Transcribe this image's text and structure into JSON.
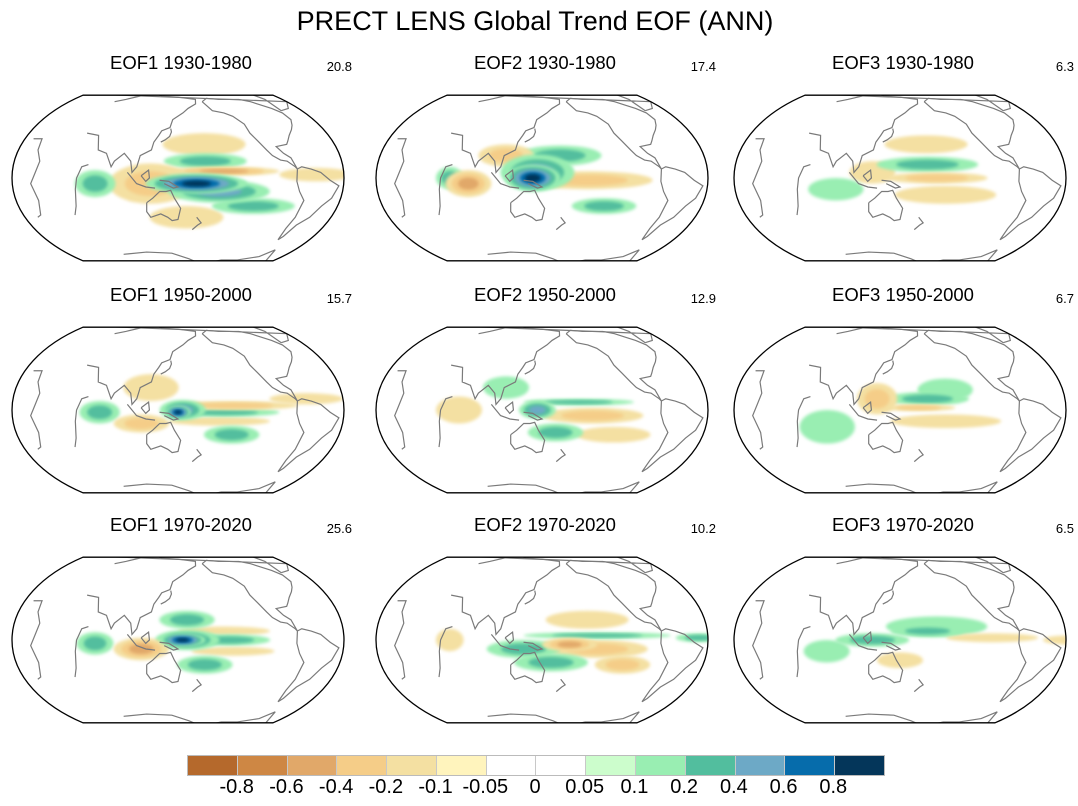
{
  "chart_data": {
    "type": "heatmap",
    "title": "PRECT LENS Global Trend EOF (ANN)",
    "projection": "Robinson, Pacific-centered",
    "layout": "3x3 grid (rows: periods; columns: EOF mode)",
    "panels": [
      {
        "title": "EOF1 1930-1980",
        "mode": "EOF1",
        "period": "1930-1980",
        "pct_variance": "20.8",
        "pattern": [
          {
            "lon": 170,
            "lat": -5,
            "rx": 55,
            "ry": 9,
            "value": 0.8
          },
          {
            "lon": 195,
            "lat": -12,
            "rx": 55,
            "ry": 10,
            "value": 0.4
          },
          {
            "lon": 235,
            "lat": -25,
            "rx": 45,
            "ry": 7,
            "value": 0.2
          },
          {
            "lon": 180,
            "lat": 15,
            "rx": 45,
            "ry": 7,
            "value": 0.2
          },
          {
            "lon": 200,
            "lat": 6,
            "rx": 60,
            "ry": 4,
            "value": -0.4
          },
          {
            "lon": 120,
            "lat": -5,
            "rx": 45,
            "ry": 18,
            "value": -0.2
          },
          {
            "lon": 60,
            "lat": -5,
            "rx": 22,
            "ry": 12,
            "value": 0.2
          },
          {
            "lon": 300,
            "lat": 3,
            "rx": 40,
            "ry": 6,
            "value": -0.1
          },
          {
            "lon": 180,
            "lat": 30,
            "rx": 45,
            "ry": 10,
            "value": -0.1
          },
          {
            "lon": 160,
            "lat": -35,
            "rx": 40,
            "ry": 10,
            "value": -0.1
          }
        ]
      },
      {
        "title": "EOF2 1930-1980",
        "mode": "EOF2",
        "period": "1930-1980",
        "pct_variance": "17.4",
        "pattern": [
          {
            "lon": 140,
            "lat": 0,
            "rx": 30,
            "ry": 12,
            "value": 0.8
          },
          {
            "lon": 145,
            "lat": 5,
            "rx": 40,
            "ry": 16,
            "value": 0.4
          },
          {
            "lon": 200,
            "lat": -2,
            "rx": 70,
            "ry": 8,
            "value": -0.2
          },
          {
            "lon": 220,
            "lat": -25,
            "rx": 35,
            "ry": 7,
            "value": 0.2
          },
          {
            "lon": 170,
            "lat": 20,
            "rx": 45,
            "ry": 9,
            "value": 0.2
          },
          {
            "lon": 70,
            "lat": -5,
            "rx": 25,
            "ry": 12,
            "value": -0.4
          },
          {
            "lon": 50,
            "lat": 0,
            "rx": 15,
            "ry": 10,
            "value": 0.2
          },
          {
            "lon": 110,
            "lat": 20,
            "rx": 30,
            "ry": 10,
            "value": -0.2
          }
        ]
      },
      {
        "title": "EOF3 1930-1980",
        "mode": "EOF3",
        "period": "1930-1980",
        "pct_variance": "6.3",
        "pattern": [
          {
            "lon": 180,
            "lat": 12,
            "rx": 55,
            "ry": 7,
            "value": 0.2
          },
          {
            "lon": 190,
            "lat": 0,
            "rx": 55,
            "ry": 5,
            "value": -0.2
          },
          {
            "lon": 200,
            "lat": -15,
            "rx": 55,
            "ry": 8,
            "value": -0.1
          },
          {
            "lon": 180,
            "lat": 30,
            "rx": 45,
            "ry": 8,
            "value": -0.1
          },
          {
            "lon": 120,
            "lat": 5,
            "rx": 25,
            "ry": 10,
            "value": -0.1
          },
          {
            "lon": 80,
            "lat": -10,
            "rx": 30,
            "ry": 10,
            "value": 0.1
          }
        ]
      },
      {
        "title": "EOF1 1950-2000",
        "mode": "EOF1",
        "period": "1950-2000",
        "pct_variance": "15.7",
        "pattern": [
          {
            "lon": 150,
            "lat": -2,
            "rx": 14,
            "ry": 6,
            "value": 0.8
          },
          {
            "lon": 155,
            "lat": 0,
            "rx": 25,
            "ry": 9,
            "value": 0.4
          },
          {
            "lon": 200,
            "lat": -2,
            "rx": 60,
            "ry": 4,
            "value": 0.2
          },
          {
            "lon": 210,
            "lat": 4,
            "rx": 70,
            "ry": 4,
            "value": -0.2
          },
          {
            "lon": 195,
            "lat": -10,
            "rx": 55,
            "ry": 4,
            "value": -0.1
          },
          {
            "lon": 210,
            "lat": -22,
            "rx": 30,
            "ry": 8,
            "value": 0.2
          },
          {
            "lon": 65,
            "lat": -2,
            "rx": 22,
            "ry": 10,
            "value": 0.2
          },
          {
            "lon": 110,
            "lat": -12,
            "rx": 30,
            "ry": 8,
            "value": -0.2
          },
          {
            "lon": 120,
            "lat": 20,
            "rx": 30,
            "ry": 12,
            "value": -0.1
          },
          {
            "lon": 290,
            "lat": 10,
            "rx": 40,
            "ry": 5,
            "value": -0.1
          }
        ]
      },
      {
        "title": "EOF2 1950-2000",
        "mode": "EOF2",
        "period": "1950-2000",
        "pct_variance": "12.9",
        "pattern": [
          {
            "lon": 145,
            "lat": 0,
            "rx": 20,
            "ry": 8,
            "value": 0.4
          },
          {
            "lon": 205,
            "lat": -5,
            "rx": 55,
            "ry": 7,
            "value": -0.2
          },
          {
            "lon": 230,
            "lat": -22,
            "rx": 40,
            "ry": 7,
            "value": -0.1
          },
          {
            "lon": 190,
            "lat": 7,
            "rx": 60,
            "ry": 3,
            "value": 0.2
          },
          {
            "lon": 165,
            "lat": -20,
            "rx": 30,
            "ry": 8,
            "value": 0.2
          },
          {
            "lon": 60,
            "lat": 0,
            "rx": 25,
            "ry": 12,
            "value": -0.1
          },
          {
            "lon": 110,
            "lat": 20,
            "rx": 25,
            "ry": 10,
            "value": 0.1
          }
        ]
      },
      {
        "title": "EOF3 1950-2000",
        "mode": "EOF3",
        "period": "1950-2000",
        "pct_variance": "6.7",
        "pattern": [
          {
            "lon": 180,
            "lat": 10,
            "rx": 45,
            "ry": 6,
            "value": 0.2
          },
          {
            "lon": 200,
            "lat": 18,
            "rx": 30,
            "ry": 10,
            "value": 0.1
          },
          {
            "lon": 170,
            "lat": 2,
            "rx": 40,
            "ry": 3,
            "value": -0.2
          },
          {
            "lon": 200,
            "lat": -10,
            "rx": 60,
            "ry": 6,
            "value": -0.1
          },
          {
            "lon": 125,
            "lat": 10,
            "rx": 22,
            "ry": 14,
            "value": -0.2
          },
          {
            "lon": 70,
            "lat": -15,
            "rx": 30,
            "ry": 15,
            "value": 0.1
          }
        ]
      },
      {
        "title": "EOF1 1970-2020",
        "mode": "EOF1",
        "period": "1970-2020",
        "pct_variance": "25.6",
        "pattern": [
          {
            "lon": 155,
            "lat": 0,
            "rx": 25,
            "ry": 6,
            "value": 0.8
          },
          {
            "lon": 160,
            "lat": 0,
            "rx": 35,
            "ry": 9,
            "value": 0.4
          },
          {
            "lon": 205,
            "lat": 0,
            "rx": 45,
            "ry": 5,
            "value": 0.2
          },
          {
            "lon": 160,
            "lat": 18,
            "rx": 30,
            "ry": 8,
            "value": 0.2
          },
          {
            "lon": 180,
            "lat": -22,
            "rx": 30,
            "ry": 8,
            "value": 0.2
          },
          {
            "lon": 110,
            "lat": -8,
            "rx": 30,
            "ry": 10,
            "value": -0.4
          },
          {
            "lon": 60,
            "lat": -3,
            "rx": 20,
            "ry": 10,
            "value": 0.2
          },
          {
            "lon": 200,
            "lat": 8,
            "rx": 50,
            "ry": 4,
            "value": -0.1
          },
          {
            "lon": 210,
            "lat": -10,
            "rx": 45,
            "ry": 4,
            "value": -0.1
          }
        ]
      },
      {
        "title": "EOF2 1970-2020",
        "mode": "EOF2",
        "period": "1970-2020",
        "pct_variance": "10.2",
        "pattern": [
          {
            "lon": 180,
            "lat": -4,
            "rx": 30,
            "ry": 6,
            "value": -0.4
          },
          {
            "lon": 210,
            "lat": -8,
            "rx": 55,
            "ry": 8,
            "value": -0.2
          },
          {
            "lon": 240,
            "lat": -22,
            "rx": 30,
            "ry": 8,
            "value": -0.2
          },
          {
            "lon": 210,
            "lat": 4,
            "rx": 80,
            "ry": 3,
            "value": 0.2
          },
          {
            "lon": 130,
            "lat": -8,
            "rx": 40,
            "ry": 8,
            "value": 0.2
          },
          {
            "lon": 160,
            "lat": -20,
            "rx": 40,
            "ry": 8,
            "value": 0.2
          },
          {
            "lon": 200,
            "lat": 18,
            "rx": 45,
            "ry": 8,
            "value": -0.1
          },
          {
            "lon": 50,
            "lat": 0,
            "rx": 15,
            "ry": 10,
            "value": -0.1
          },
          {
            "lon": 320,
            "lat": 2,
            "rx": 25,
            "ry": 4,
            "value": 0.2
          }
        ]
      },
      {
        "title": "EOF3 1970-2020",
        "mode": "EOF3",
        "period": "1970-2020",
        "pct_variance": "6.5",
        "pattern": [
          {
            "lon": 180,
            "lat": 8,
            "rx": 40,
            "ry": 5,
            "value": 0.2
          },
          {
            "lon": 190,
            "lat": 12,
            "rx": 55,
            "ry": 9,
            "value": 0.1
          },
          {
            "lon": 250,
            "lat": 2,
            "rx": 50,
            "ry": 4,
            "value": -0.1
          },
          {
            "lon": 330,
            "lat": 0,
            "rx": 25,
            "ry": 4,
            "value": -0.1
          },
          {
            "lon": 120,
            "lat": 0,
            "rx": 40,
            "ry": 6,
            "value": 0.2
          },
          {
            "lon": 150,
            "lat": -18,
            "rx": 25,
            "ry": 7,
            "value": -0.1
          },
          {
            "lon": 70,
            "lat": -10,
            "rx": 25,
            "ry": 10,
            "value": 0.1
          }
        ]
      }
    ],
    "colorbar": {
      "levels": [
        "-0.8",
        "-0.6",
        "-0.4",
        "-0.2",
        "-0.1",
        "-0.05",
        "0",
        "0.05",
        "0.1",
        "0.2",
        "0.4",
        "0.6",
        "0.8"
      ],
      "colors": [
        "#b5692c",
        "#ce8744",
        "#e1a869",
        "#f5cd88",
        "#f4e0a2",
        "#fff4bd",
        "#ffffff",
        "#ffffff",
        "#ccfdcc",
        "#99eeb2",
        "#52be9e",
        "#6da9c6",
        "#066cab",
        "#04365a"
      ]
    }
  }
}
